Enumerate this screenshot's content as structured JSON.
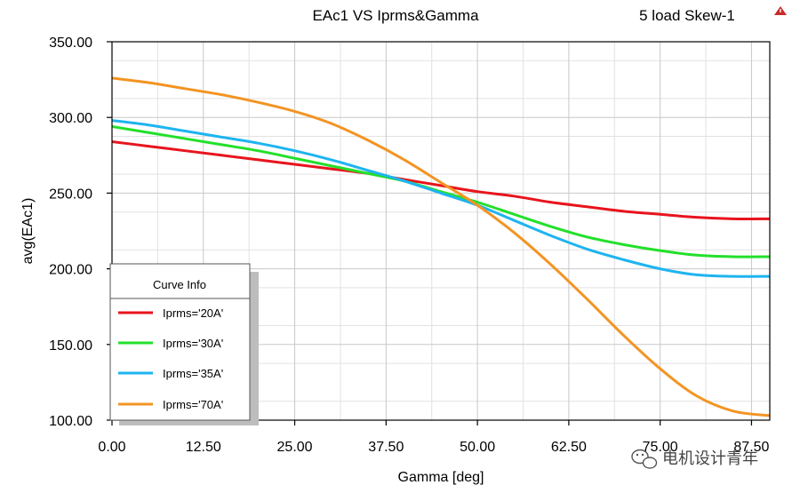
{
  "chart_data": {
    "type": "line",
    "title": "EAc1 VS Iprms&Gamma",
    "subtitle": "5 load Skew-1",
    "xlabel": "Gamma [deg]",
    "ylabel": "avg(EAc1)",
    "xlim": [
      0,
      90
    ],
    "ylim": [
      100,
      350
    ],
    "xticks": [
      0,
      12.5,
      25,
      37.5,
      50,
      62.5,
      75,
      87.5
    ],
    "xtick_labels": [
      "0.00",
      "12.50",
      "25.00",
      "37.50",
      "50.00",
      "62.50",
      "75.00",
      "87.50"
    ],
    "yticks": [
      100,
      150,
      200,
      250,
      300,
      350
    ],
    "ytick_labels": [
      "100.00",
      "150.00",
      "200.00",
      "250.00",
      "300.00",
      "350.00"
    ],
    "grid": true,
    "legend_title": "Curve Info",
    "legend_position": "bottom-left",
    "x": [
      0,
      5,
      10,
      15,
      20,
      25,
      30,
      35,
      40,
      45,
      50,
      55,
      60,
      65,
      70,
      75,
      80,
      85,
      90
    ],
    "series": [
      {
        "name": "Iprms='20A'",
        "color": "#e8141c",
        "values": [
          284,
          281,
          278,
          275,
          272,
          269,
          266,
          263,
          259,
          255,
          251,
          248,
          244,
          241,
          238,
          236,
          234,
          233,
          233
        ]
      },
      {
        "name": "Iprms='30A'",
        "color": "#22e02a",
        "values": [
          294,
          290,
          286,
          282,
          278,
          273,
          268,
          263,
          258,
          251,
          244,
          236,
          228,
          221,
          216,
          212,
          209,
          208,
          208
        ]
      },
      {
        "name": "Iprms='35A'",
        "color": "#1eb4f0",
        "values": [
          298,
          295,
          291,
          287,
          283,
          278,
          272,
          265,
          258,
          250,
          242,
          232,
          222,
          213,
          206,
          200,
          196,
          195,
          195
        ]
      },
      {
        "name": "Iprms='70A'",
        "color": "#f39423",
        "values": [
          326,
          323,
          319,
          315,
          310,
          304,
          296,
          285,
          272,
          257,
          242,
          224,
          203,
          180,
          156,
          134,
          116,
          106,
          103
        ]
      }
    ]
  },
  "corner_icon": "warning-triangle-icon",
  "watermark": {
    "icon": "wechat-icon",
    "text": "电机设计青年"
  }
}
